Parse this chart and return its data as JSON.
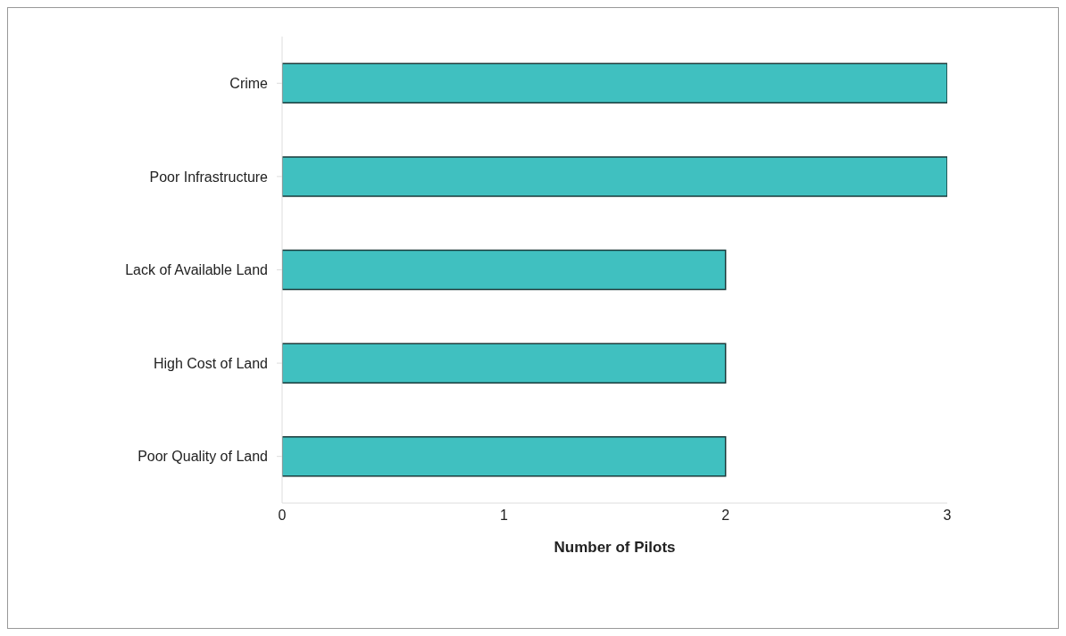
{
  "chart_data": {
    "type": "bar",
    "orientation": "horizontal",
    "xlabel": "Number of Pilots",
    "categories": [
      "Crime",
      "Poor Infrastructure",
      "Lack of Available Land",
      "High Cost of Land",
      "Poor Quality of Land"
    ],
    "values": [
      3,
      3,
      2,
      2,
      2
    ],
    "color": "#40c0c0",
    "xlim": [
      0,
      3
    ],
    "xticks": [
      0,
      1,
      2,
      3
    ],
    "grid": false,
    "legend": false
  }
}
